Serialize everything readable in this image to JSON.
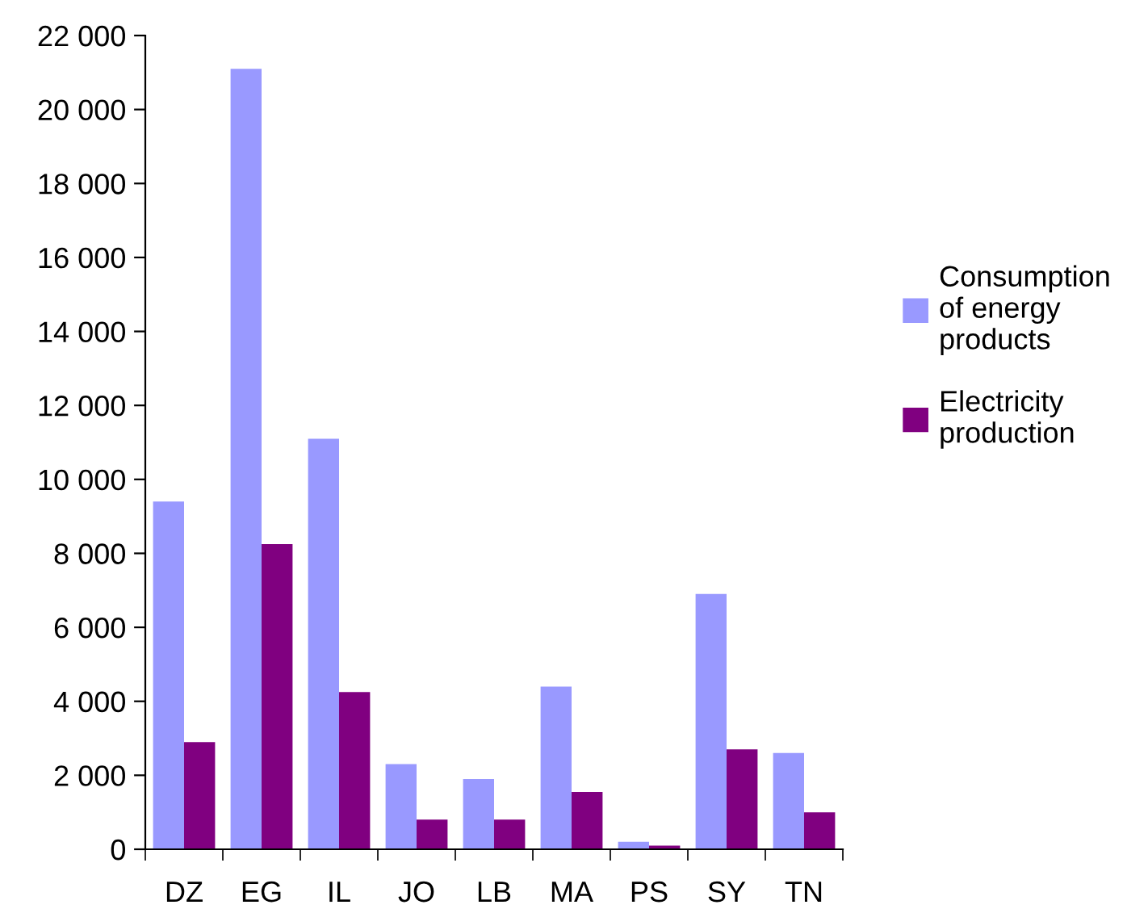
{
  "chart_data": {
    "type": "bar",
    "categories": [
      "DZ",
      "EG",
      "IL",
      "JO",
      "LB",
      "MA",
      "PS",
      "SY",
      "TN"
    ],
    "series": [
      {
        "name": "Consumption of energy products",
        "color": "#9999ff",
        "values": [
          9400,
          21100,
          11100,
          2300,
          1900,
          4400,
          200,
          6900,
          2600
        ]
      },
      {
        "name": "Electricity production",
        "color": "#800080",
        "values": [
          2900,
          8250,
          4250,
          800,
          800,
          1550,
          100,
          2700,
          1000
        ]
      }
    ],
    "ylim": [
      0,
      22000
    ],
    "yticks": [
      {
        "value": 0,
        "label": "0"
      },
      {
        "value": 2000,
        "label": "2 000"
      },
      {
        "value": 4000,
        "label": "4 000"
      },
      {
        "value": 6000,
        "label": "6 000"
      },
      {
        "value": 8000,
        "label": "8 000"
      },
      {
        "value": 10000,
        "label": "10 000"
      },
      {
        "value": 12000,
        "label": "12 000"
      },
      {
        "value": 14000,
        "label": "14 000"
      },
      {
        "value": 16000,
        "label": "16 000"
      },
      {
        "value": 18000,
        "label": "18 000"
      },
      {
        "value": 20000,
        "label": "20 000"
      },
      {
        "value": 22000,
        "label": "22 000"
      }
    ],
    "grid": false,
    "legend": "right"
  }
}
